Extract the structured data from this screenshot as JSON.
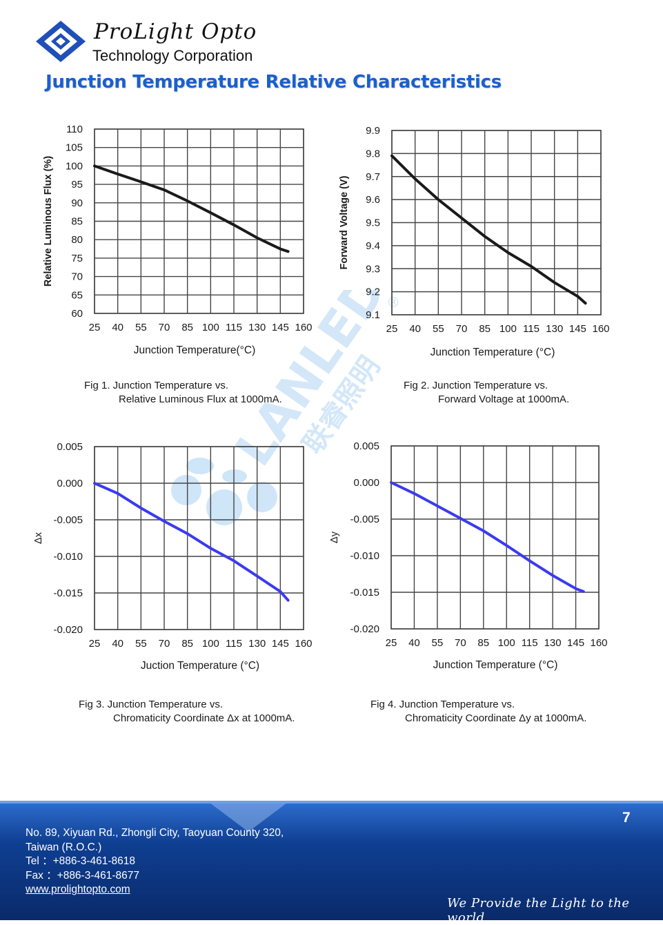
{
  "header": {
    "company_script": "ProLight Opto",
    "company_line2": "Technology Corporation",
    "page_title": "Junction Temperature Relative Characteristics"
  },
  "watermark": {
    "brand": "LANLEDS",
    "cn": "联睿照明",
    "mark": "®"
  },
  "colors": {
    "title": "#1a5fcf",
    "black_curve": "#1a1a1a",
    "blue_curve": "#3b3bf0",
    "grid": "#444444",
    "footer_blue": "#0d3a86"
  },
  "chart_data": [
    {
      "type": "line",
      "id": "fig1",
      "xlabel": "Junction Temperature(°C)",
      "ylabel": "Relative Luminous Flux (%)",
      "xticks": [
        "25",
        "40",
        "55",
        "70",
        "85",
        "100",
        "115",
        "130",
        "145",
        "160"
      ],
      "yticks": [
        "110",
        "105",
        "100",
        "95",
        "90",
        "85",
        "80",
        "75",
        "70",
        "65",
        "60"
      ],
      "xlim": [
        25,
        160
      ],
      "ylim": [
        60,
        110
      ],
      "series": [
        {
          "name": "flux",
          "color": "#1a1a1a",
          "x": [
            25,
            40,
            55,
            70,
            85,
            100,
            115,
            130,
            145,
            150
          ],
          "y": [
            100,
            97.8,
            95.7,
            93.5,
            90.5,
            87.3,
            84.0,
            80.5,
            77.5,
            76.8
          ]
        }
      ],
      "caption_line1": "Fig 1. Junction Temperature vs.",
      "caption_line2": "Relative Luminous Flux at 1000mA."
    },
    {
      "type": "line",
      "id": "fig2",
      "xlabel": "Junction Temperature (°C)",
      "ylabel": "Forward Voltage (V)",
      "xticks": [
        "25",
        "40",
        "55",
        "70",
        "85",
        "100",
        "115",
        "130",
        "145",
        "160"
      ],
      "yticks": [
        "9.9",
        "9.8",
        "9.7",
        "9.6",
        "9.5",
        "9.4",
        "9.3",
        "9.2",
        "9.1"
      ],
      "xlim": [
        25,
        160
      ],
      "ylim": [
        9.1,
        9.9
      ],
      "series": [
        {
          "name": "vf",
          "color": "#1a1a1a",
          "x": [
            25,
            40,
            55,
            70,
            85,
            100,
            115,
            130,
            145,
            150
          ],
          "y": [
            9.79,
            9.69,
            9.6,
            9.52,
            9.44,
            9.37,
            9.31,
            9.24,
            9.18,
            9.15
          ]
        }
      ],
      "caption_line1": "Fig 2. Junction Temperature vs.",
      "caption_line2": "Forward Voltage at 1000mA."
    },
    {
      "type": "line",
      "id": "fig3",
      "xlabel": "Juction Temperature (°C)",
      "ylabel": "Δx",
      "xticks": [
        "25",
        "40",
        "55",
        "70",
        "85",
        "100",
        "115",
        "130",
        "145",
        "160"
      ],
      "yticks": [
        "0.005",
        "0.000",
        "-0.005",
        "-0.010",
        "-0.015",
        "-0.020"
      ],
      "xlim": [
        25,
        160
      ],
      "ylim": [
        -0.02,
        0.005
      ],
      "series": [
        {
          "name": "dx",
          "color": "#3b3bf0",
          "x": [
            25,
            40,
            55,
            70,
            85,
            100,
            115,
            130,
            145,
            150
          ],
          "y": [
            0.0,
            -0.0014,
            -0.0034,
            -0.0052,
            -0.0069,
            -0.0089,
            -0.0106,
            -0.0127,
            -0.0148,
            -0.016
          ]
        }
      ],
      "caption_line1": "Fig 3. Junction Temperature vs.",
      "caption_line2": "Chromaticity Coordinate Δx at 1000mA."
    },
    {
      "type": "line",
      "id": "fig4",
      "xlabel": "Junction Temperature (°C)",
      "ylabel": "Δy",
      "xticks": [
        "25",
        "40",
        "55",
        "70",
        "85",
        "100",
        "115",
        "130",
        "145",
        "160"
      ],
      "yticks": [
        "0.005",
        "0.000",
        "-0.005",
        "-0.010",
        "-0.015",
        "-0.020"
      ],
      "xlim": [
        25,
        160
      ],
      "ylim": [
        -0.02,
        0.005
      ],
      "series": [
        {
          "name": "dy",
          "color": "#3b3bf0",
          "x": [
            25,
            40,
            55,
            70,
            85,
            100,
            115,
            130,
            145,
            150
          ],
          "y": [
            0.0,
            -0.0015,
            -0.0032,
            -0.0049,
            -0.0066,
            -0.0086,
            -0.0107,
            -0.0127,
            -0.0145,
            -0.0149
          ]
        }
      ],
      "caption_line1": "Fig 4. Junction Temperature vs.",
      "caption_line2": "Chromaticity Coordinate Δy at 1000mA."
    }
  ],
  "footer": {
    "page_number": "7",
    "address_line1": "No. 89, Xiyuan Rd., Zhongli City, Taoyuan County 320,",
    "address_line2": "Taiwan (R.O.C.)",
    "tel": "Tel ：+886-3-461-8618",
    "fax": "Fax ：+886-3-461-8677",
    "website": "www.prolightopto.com",
    "slogan": "We Provide the Light to the world"
  }
}
